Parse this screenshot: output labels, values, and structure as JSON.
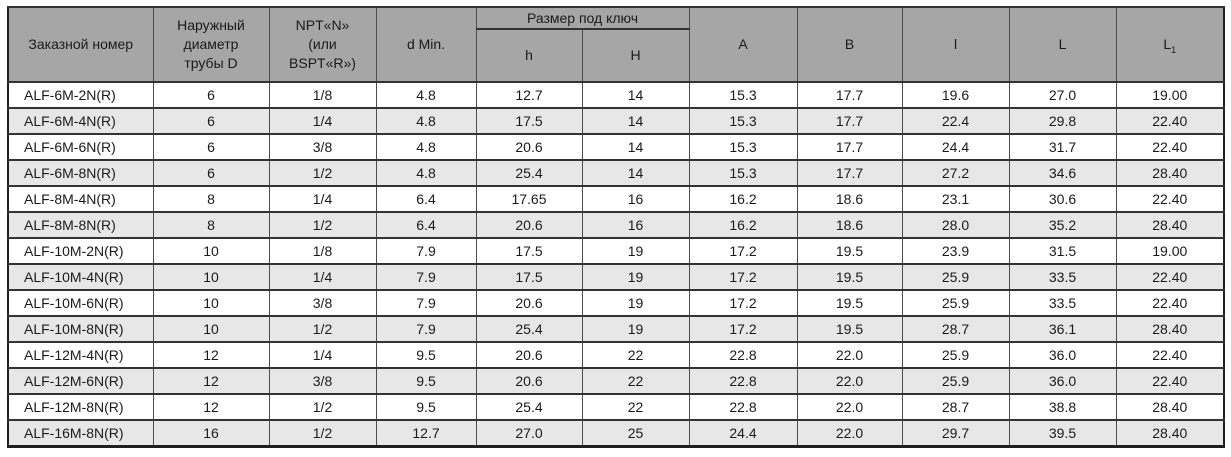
{
  "table": {
    "headers": {
      "order_number": "Заказной номер",
      "outer_diameter": "Наружный\nдиаметр\nтрубы D",
      "npt": "NPT«N»\n(или\nBSPT«R»)",
      "d_min": "d Min.",
      "wrench_size_group": "Размер под ключ",
      "h_lower": "h",
      "h_upper": "H",
      "a": "A",
      "b": "B",
      "l_lower": "l",
      "l_upper": "L",
      "l1_main": "L",
      "l1_sub": "1"
    },
    "rows": [
      [
        "ALF-6M-2N(R)",
        "6",
        "1/8",
        "4.8",
        "12.7",
        "14",
        "15.3",
        "17.7",
        "19.6",
        "27.0",
        "19.00"
      ],
      [
        "ALF-6M-4N(R)",
        "6",
        "1/4",
        "4.8",
        "17.5",
        "14",
        "15.3",
        "17.7",
        "22.4",
        "29.8",
        "22.40"
      ],
      [
        "ALF-6M-6N(R)",
        "6",
        "3/8",
        "4.8",
        "20.6",
        "14",
        "15.3",
        "17.7",
        "24.4",
        "31.7",
        "22.40"
      ],
      [
        "ALF-6M-8N(R)",
        "6",
        "1/2",
        "4.8",
        "25.4",
        "14",
        "15.3",
        "17.7",
        "27.2",
        "34.6",
        "28.40"
      ],
      [
        "ALF-8M-4N(R)",
        "8",
        "1/4",
        "6.4",
        "17.65",
        "16",
        "16.2",
        "18.6",
        "23.1",
        "30.6",
        "22.40"
      ],
      [
        "ALF-8M-8N(R)",
        "8",
        "1/2",
        "6.4",
        "20.6",
        "16",
        "16.2",
        "18.6",
        "28.0",
        "35.2",
        "28.40"
      ],
      [
        "ALF-10M-2N(R)",
        "10",
        "1/8",
        "7.9",
        "17.5",
        "19",
        "17.2",
        "19.5",
        "23.9",
        "31.5",
        "19.00"
      ],
      [
        "ALF-10M-4N(R)",
        "10",
        "1/4",
        "7.9",
        "17.5",
        "19",
        "17.2",
        "19.5",
        "25.9",
        "33.5",
        "22.40"
      ],
      [
        "ALF-10M-6N(R)",
        "10",
        "3/8",
        "7.9",
        "20.6",
        "19",
        "17.2",
        "19.5",
        "25.9",
        "33.5",
        "22.40"
      ],
      [
        "ALF-10M-8N(R)",
        "10",
        "1/2",
        "7.9",
        "25.4",
        "19",
        "17.2",
        "19.5",
        "28.7",
        "36.1",
        "28.40"
      ],
      [
        "ALF-12M-4N(R)",
        "12",
        "1/4",
        "9.5",
        "20.6",
        "22",
        "22.8",
        "22.0",
        "25.9",
        "36.0",
        "22.40"
      ],
      [
        "ALF-12M-6N(R)",
        "12",
        "3/8",
        "9.5",
        "20.6",
        "22",
        "22.8",
        "22.0",
        "25.9",
        "36.0",
        "22.40"
      ],
      [
        "ALF-12M-8N(R)",
        "12",
        "1/2",
        "9.5",
        "25.4",
        "22",
        "22.8",
        "22.0",
        "28.7",
        "38.8",
        "28.40"
      ],
      [
        "ALF-16M-8N(R)",
        "16",
        "1/2",
        "12.7",
        "27.0",
        "25",
        "24.4",
        "22.0",
        "29.7",
        "39.5",
        "28.40"
      ]
    ],
    "colors": {
      "header_bg": "#a6a6a6",
      "row_stripe_bg": "#e7e7e7",
      "row_bg": "#ffffff",
      "border": "#333333",
      "text": "#1a1a1a"
    }
  }
}
